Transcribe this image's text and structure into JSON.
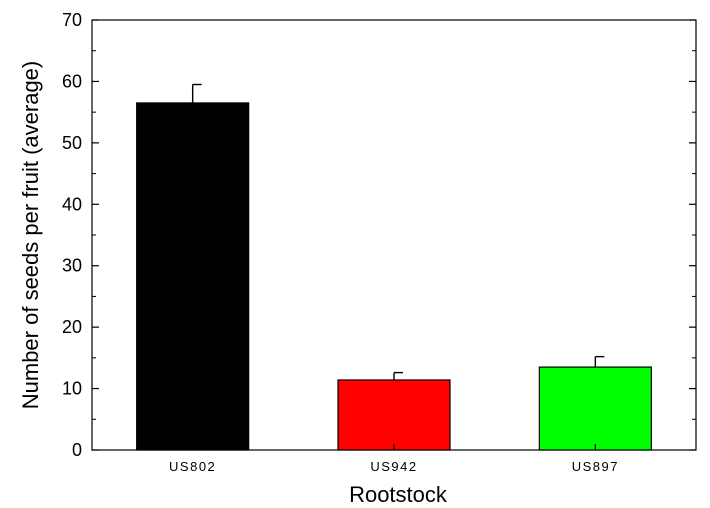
{
  "chart_data": {
    "type": "bar",
    "xlabel": "Rootstock",
    "ylabel": "Number of seeds per fruit (average)",
    "ylim": [
      0,
      70
    ],
    "yticks": [
      0,
      10,
      20,
      30,
      40,
      50,
      60,
      70
    ],
    "categories": [
      "US802",
      "US942",
      "US897"
    ],
    "values": [
      56.5,
      11.4,
      13.5
    ],
    "error_plus": [
      3.0,
      1.2,
      1.7
    ],
    "colors": [
      "#000000",
      "#ff0000",
      "#00ff00"
    ],
    "grid": false,
    "legend": "none"
  }
}
